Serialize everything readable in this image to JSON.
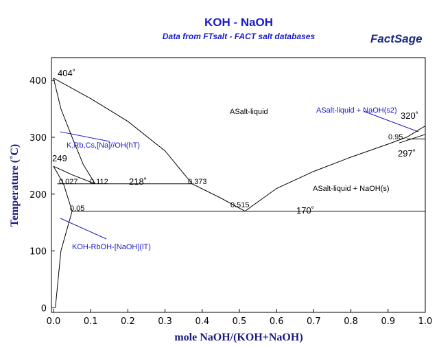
{
  "chart_data": {
    "type": "phase-diagram",
    "title": "KOH - NaOH",
    "subtitle": "Data from FTsalt - FACT salt databases",
    "logo": "FactSage",
    "x_label": "mole NaOH/(KOH+NaOH)",
    "y_label": "Temperature (˚C)",
    "xlim": [
      0,
      1
    ],
    "ylim": [
      -8,
      440
    ],
    "xticks": [
      {
        "value": 0,
        "label": "0.0"
      },
      0.1,
      0.2,
      0.3,
      0.4,
      0.5,
      0.6,
      0.7,
      0.8,
      0.9,
      {
        "value": 1,
        "label": "1.0"
      }
    ],
    "yticks": [
      0,
      100,
      200,
      300,
      400
    ],
    "grid": false,
    "line_color": "#000000",
    "lines": [
      {
        "x": [
          0,
          0.1,
          0.2,
          0.3,
          0.373,
          0.45,
          0.515
        ],
        "y": [
          404,
          368,
          328,
          276,
          218,
          193,
          170
        ]
      },
      {
        "x": [
          0.515,
          0.6,
          0.7,
          0.8,
          0.9,
          0.95,
          1
        ],
        "y": [
          170,
          210,
          240,
          265,
          288,
          300,
          320
        ]
      },
      {
        "x": [
          0,
          0.02,
          0.05,
          0.08,
          0.112
        ],
        "y": [
          404,
          350,
          300,
          252,
          218
        ]
      },
      {
        "x": [
          0,
          0.05,
          0.112
        ],
        "y": [
          249,
          234,
          218
        ]
      },
      {
        "x": [
          0,
          0.027,
          0.05
        ],
        "y": [
          249,
          218,
          170
        ]
      },
      {
        "x": [
          0.01,
          0.373
        ],
        "y": [
          218,
          218
        ]
      },
      {
        "x": [
          0.05,
          1
        ],
        "y": [
          170,
          170
        ]
      },
      {
        "x": [
          0.005,
          0.02,
          0.05
        ],
        "y": [
          0,
          100,
          170
        ]
      },
      {
        "x": [
          0.95,
          1
        ],
        "y": [
          297,
          297
        ]
      },
      {
        "x": [
          0.93,
          1
        ],
        "y": [
          290,
          305
        ]
      }
    ],
    "annotations": [
      {
        "text": "404˚",
        "color": "#000000"
      },
      {
        "text": "249",
        "color": "#000000"
      },
      {
        "text": "0.027",
        "color": "#000000"
      },
      {
        "text": "0.112",
        "color": "#000000"
      },
      {
        "text": "218˚",
        "color": "#000000"
      },
      {
        "text": "0.373",
        "color": "#000000"
      },
      {
        "text": "0.05",
        "color": "#000000"
      },
      {
        "text": "0.515",
        "color": "#000000"
      },
      {
        "text": "170˚",
        "color": "#000000"
      },
      {
        "text": "ASalt-liquid",
        "color": "#000000"
      },
      {
        "text": "ASalt-liquid + NaOH(s2)",
        "color": "#1a1acc"
      },
      {
        "text": "320˚",
        "color": "#000000"
      },
      {
        "text": "0.95",
        "color": "#000000"
      },
      {
        "text": "297˚",
        "color": "#000000"
      },
      {
        "text": "ASalt-liquid + NaOH(s)",
        "color": "#000000"
      },
      {
        "text": "K,Rb,Cs,[Na]//OH(hT)",
        "color": "#1a1acc"
      },
      {
        "text": "KOH-RbOH-[NaOH](lT)",
        "color": "#1a1acc"
      }
    ]
  }
}
